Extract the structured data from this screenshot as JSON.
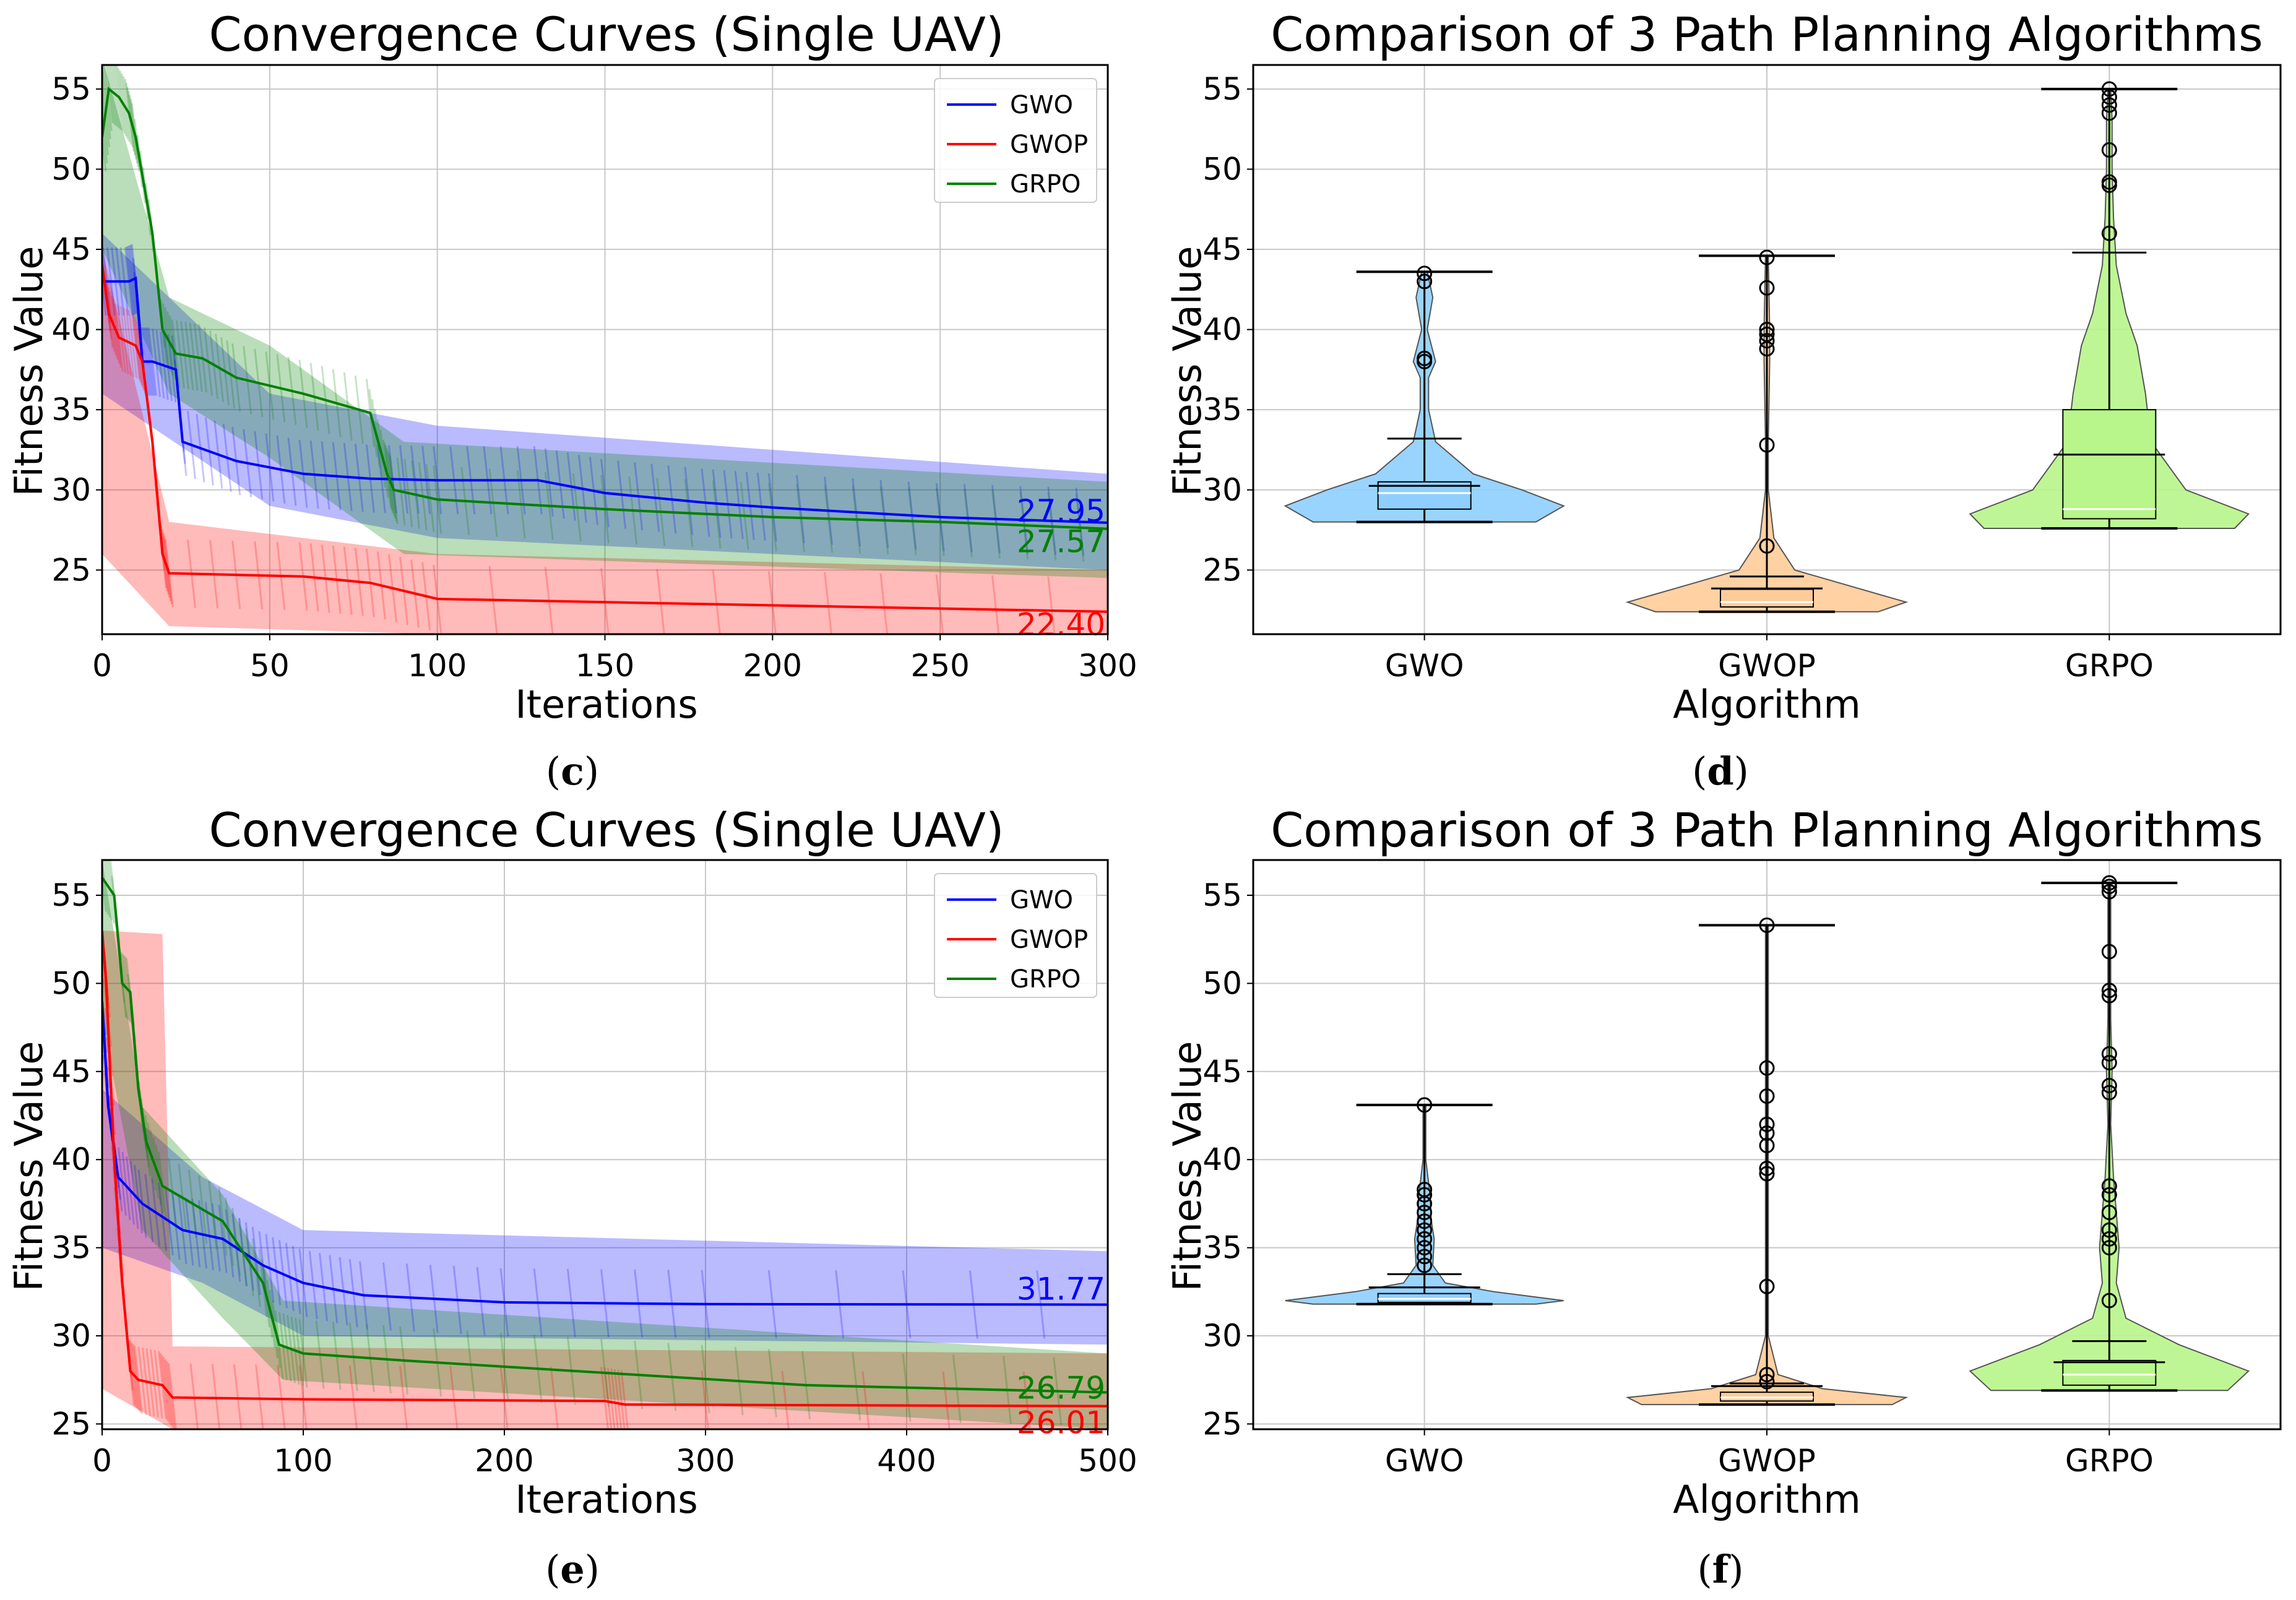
{
  "chart_data": [
    {
      "panel": "c",
      "type": "line",
      "title": "Convergence Curves (Single UAV)",
      "xlabel": "Iterations",
      "ylabel": "Fitness Value",
      "xlim": [
        0,
        300
      ],
      "ylim": [
        21,
        56.5
      ],
      "xticks": [
        0,
        50,
        100,
        150,
        200,
        250,
        300
      ],
      "yticks": [
        25,
        30,
        35,
        40,
        45,
        50,
        55
      ],
      "grid": true,
      "legend": "top-right",
      "series": [
        {
          "name": "GWO",
          "color": "#0000ff",
          "final_label": "27.95",
          "points": [
            [
              0,
              43
            ],
            [
              8,
              43
            ],
            [
              10,
              43.2
            ],
            [
              12,
              38
            ],
            [
              15,
              38
            ],
            [
              22,
              37.5
            ],
            [
              24,
              33
            ],
            [
              40,
              31.8
            ],
            [
              60,
              31
            ],
            [
              80,
              30.7
            ],
            [
              100,
              30.6
            ],
            [
              130,
              30.6
            ],
            [
              150,
              29.8
            ],
            [
              180,
              29.2
            ],
            [
              200,
              28.9
            ],
            [
              250,
              28.3
            ],
            [
              300,
              27.95
            ]
          ],
          "band": [
            [
              0,
              36
            ],
            [
              50,
              29
            ],
            [
              100,
              27
            ],
            [
              300,
              25
            ],
            [
              300,
              31
            ],
            [
              100,
              34
            ],
            [
              50,
              36
            ],
            [
              0,
              46
            ]
          ]
        },
        {
          "name": "GWOP",
          "color": "#ff0000",
          "final_label": "22.40",
          "points": [
            [
              0,
              44
            ],
            [
              2,
              41
            ],
            [
              5,
              39.5
            ],
            [
              10,
              39
            ],
            [
              12,
              38
            ],
            [
              15,
              33
            ],
            [
              18,
              26
            ],
            [
              20,
              24.8
            ],
            [
              60,
              24.6
            ],
            [
              80,
              24.2
            ],
            [
              100,
              23.2
            ],
            [
              200,
              22.8
            ],
            [
              300,
              22.4
            ]
          ],
          "band": [
            [
              0,
              26
            ],
            [
              20,
              21.5
            ],
            [
              100,
              21
            ],
            [
              300,
              21
            ],
            [
              300,
              25
            ],
            [
              100,
              26
            ],
            [
              20,
              28
            ],
            [
              0,
              45
            ]
          ]
        },
        {
          "name": "GRPO",
          "color": "#008000",
          "final_label": "27.57",
          "points": [
            [
              0,
              52
            ],
            [
              2,
              55
            ],
            [
              5,
              54.5
            ],
            [
              8,
              53.5
            ],
            [
              10,
              52
            ],
            [
              15,
              46
            ],
            [
              18,
              40
            ],
            [
              22,
              38.5
            ],
            [
              30,
              38.2
            ],
            [
              40,
              37
            ],
            [
              60,
              36
            ],
            [
              80,
              34.8
            ],
            [
              85,
              31
            ],
            [
              87,
              30
            ],
            [
              100,
              29.4
            ],
            [
              150,
              28.8
            ],
            [
              200,
              28.3
            ],
            [
              250,
              28
            ],
            [
              300,
              27.57
            ]
          ],
          "band": [
            [
              0,
              45
            ],
            [
              20,
              36
            ],
            [
              50,
              32
            ],
            [
              90,
              26
            ],
            [
              300,
              24.5
            ],
            [
              300,
              30.5
            ],
            [
              90,
              33
            ],
            [
              50,
              39
            ],
            [
              20,
              42
            ],
            [
              0,
              57
            ]
          ]
        }
      ]
    },
    {
      "panel": "d",
      "type": "violin",
      "title": "Comparison of 3 Path Planning Algorithms",
      "xlabel": "Algorithm",
      "ylabel": "Fitness Value",
      "categories": [
        "GWO",
        "GWOP",
        "GRPO"
      ],
      "ylim": [
        21,
        56.5
      ],
      "yticks": [
        25,
        30,
        35,
        40,
        45,
        50,
        55
      ],
      "grid": true,
      "groups": [
        {
          "name": "GWO",
          "fill": "#8ecfff",
          "min": 28.0,
          "q1": 28.8,
          "median": 29.8,
          "q3": 30.5,
          "max": 43.6,
          "whisker_low": 28.0,
          "whisker_high": 33.2,
          "outliers": [
            38,
            38.2,
            43,
            43.5
          ],
          "density": [
            [
              28,
              0.8
            ],
            [
              29,
              1.0
            ],
            [
              30,
              0.7
            ],
            [
              31,
              0.35
            ],
            [
              33,
              0.08
            ],
            [
              35,
              0.03
            ],
            [
              37,
              0.03
            ],
            [
              38,
              0.08
            ],
            [
              40,
              0.02
            ],
            [
              42,
              0.06
            ],
            [
              43.6,
              0.02
            ]
          ]
        },
        {
          "name": "GWOP",
          "fill": "#ffcc99",
          "min": 22.4,
          "q1": 22.7,
          "median": 23.0,
          "q3": 23.8,
          "max": 44.6,
          "whisker_low": 22.4,
          "whisker_high": 24.6,
          "outliers": [
            26.5,
            32.8,
            38.8,
            39.3,
            39.7,
            40,
            42.6,
            44.5
          ],
          "density": [
            [
              22.4,
              0.8
            ],
            [
              23,
              1.0
            ],
            [
              24,
              0.6
            ],
            [
              25,
              0.2
            ],
            [
              27,
              0.05
            ],
            [
              30,
              0.01
            ],
            [
              33,
              0.01
            ],
            [
              38,
              0.02
            ],
            [
              40,
              0.02
            ],
            [
              44.6,
              0.01
            ]
          ]
        },
        {
          "name": "GRPO",
          "fill": "#b8f58a",
          "min": 27.6,
          "q1": 28.2,
          "median": 28.8,
          "q3": 35.0,
          "max": 55.0,
          "whisker_low": 27.6,
          "whisker_high": 44.8,
          "outliers": [
            46,
            49,
            49.2,
            51.2,
            53.5,
            54,
            54.5,
            55
          ],
          "density": [
            [
              27.6,
              0.9
            ],
            [
              28.5,
              1.0
            ],
            [
              30,
              0.55
            ],
            [
              33,
              0.3
            ],
            [
              36,
              0.26
            ],
            [
              39,
              0.2
            ],
            [
              41,
              0.12
            ],
            [
              44,
              0.05
            ],
            [
              47,
              0.03
            ],
            [
              50,
              0.02
            ],
            [
              53,
              0.02
            ],
            [
              55,
              0.01
            ]
          ]
        }
      ]
    },
    {
      "panel": "e",
      "type": "line",
      "title": "Convergence Curves (Single UAV)",
      "xlabel": "Iterations",
      "ylabel": "Fitness Value",
      "xlim": [
        0,
        500
      ],
      "ylim": [
        24.7,
        57
      ],
      "xticks": [
        0,
        100,
        200,
        300,
        400,
        500
      ],
      "yticks": [
        25,
        30,
        35,
        40,
        45,
        50,
        55
      ],
      "grid": true,
      "legend": "top-right",
      "series": [
        {
          "name": "GWO",
          "color": "#0000ff",
          "final_label": "31.77",
          "points": [
            [
              0,
              49
            ],
            [
              3,
              43
            ],
            [
              8,
              39
            ],
            [
              20,
              37.5
            ],
            [
              40,
              36
            ],
            [
              60,
              35.5
            ],
            [
              80,
              34
            ],
            [
              100,
              33
            ],
            [
              130,
              32.3
            ],
            [
              200,
              31.9
            ],
            [
              300,
              31.8
            ],
            [
              500,
              31.77
            ]
          ],
          "band": [
            [
              0,
              35
            ],
            [
              50,
              33
            ],
            [
              100,
              30
            ],
            [
              500,
              29.5
            ],
            [
              500,
              34.8
            ],
            [
              100,
              36
            ],
            [
              50,
              39
            ],
            [
              0,
              44
            ]
          ]
        },
        {
          "name": "GWOP",
          "color": "#ff0000",
          "final_label": "26.01",
          "points": [
            [
              0,
              53
            ],
            [
              2,
              50
            ],
            [
              6,
              40
            ],
            [
              10,
              33
            ],
            [
              14,
              28
            ],
            [
              18,
              27.5
            ],
            [
              30,
              27.2
            ],
            [
              35,
              26.5
            ],
            [
              100,
              26.4
            ],
            [
              250,
              26.3
            ],
            [
              260,
              26.1
            ],
            [
              500,
              26.01
            ]
          ],
          "band": [
            [
              0,
              27
            ],
            [
              35,
              24.7
            ],
            [
              500,
              24.7
            ],
            [
              500,
              29
            ],
            [
              35,
              29.4
            ],
            [
              30,
              52.8
            ],
            [
              0,
              53
            ]
          ]
        },
        {
          "name": "GRPO",
          "color": "#008000",
          "final_label": "26.79",
          "points": [
            [
              0,
              56
            ],
            [
              6,
              55
            ],
            [
              10,
              50
            ],
            [
              14,
              49.5
            ],
            [
              18,
              44
            ],
            [
              22,
              41
            ],
            [
              30,
              38.5
            ],
            [
              60,
              36.5
            ],
            [
              80,
              33
            ],
            [
              88,
              29.5
            ],
            [
              100,
              29
            ],
            [
              150,
              28.6
            ],
            [
              250,
              27.9
            ],
            [
              350,
              27.2
            ],
            [
              500,
              26.79
            ]
          ],
          "band": [
            [
              0,
              48
            ],
            [
              20,
              36
            ],
            [
              60,
              31
            ],
            [
              90,
              27.5
            ],
            [
              500,
              24.7
            ],
            [
              500,
              29
            ],
            [
              90,
              32
            ],
            [
              60,
              38
            ],
            [
              20,
              43
            ],
            [
              0,
              57
            ]
          ]
        }
      ]
    },
    {
      "panel": "f",
      "type": "violin",
      "title": "Comparison of 3 Path Planning Algorithms",
      "xlabel": "Algorithm",
      "ylabel": "Fitness Value",
      "categories": [
        "GWO",
        "GWOP",
        "GRPO"
      ],
      "ylim": [
        24.7,
        57
      ],
      "yticks": [
        25,
        30,
        35,
        40,
        45,
        50,
        55
      ],
      "grid": true,
      "groups": [
        {
          "name": "GWO",
          "fill": "#8ecfff",
          "min": 31.8,
          "q1": 31.9,
          "median": 32.1,
          "q3": 32.4,
          "max": 43.1,
          "whisker_low": 31.8,
          "whisker_high": 33.5,
          "outliers": [
            34,
            34.5,
            35,
            35.5,
            36,
            36.5,
            37,
            37.5,
            38,
            38.3,
            43.1
          ],
          "density": [
            [
              31.8,
              0.8
            ],
            [
              32,
              1.0
            ],
            [
              32.5,
              0.5
            ],
            [
              33,
              0.15
            ],
            [
              34,
              0.06
            ],
            [
              35.5,
              0.07
            ],
            [
              36.5,
              0.05
            ],
            [
              38,
              0.04
            ],
            [
              40,
              0.01
            ],
            [
              43.1,
              0.01
            ]
          ]
        },
        {
          "name": "GWOP",
          "fill": "#ffcc99",
          "min": 26.1,
          "q1": 26.3,
          "median": 26.5,
          "q3": 26.8,
          "max": 53.3,
          "whisker_low": 26.1,
          "whisker_high": 27.3,
          "outliers": [
            27.4,
            27.8,
            32.8,
            39.2,
            39.5,
            40.8,
            41.5,
            42,
            43.6,
            45.2,
            53.3
          ],
          "density": [
            [
              26.1,
              0.9
            ],
            [
              26.5,
              1.0
            ],
            [
              27,
              0.4
            ],
            [
              27.8,
              0.08
            ],
            [
              30,
              0.01
            ],
            [
              35,
              0.01
            ],
            [
              40,
              0.01
            ],
            [
              45,
              0.01
            ],
            [
              53.3,
              0.01
            ]
          ]
        },
        {
          "name": "GRPO",
          "fill": "#b8f58a",
          "min": 26.9,
          "q1": 27.2,
          "median": 27.8,
          "q3": 28.6,
          "max": 55.7,
          "whisker_low": 26.9,
          "whisker_high": 29.7,
          "outliers": [
            32,
            35,
            35.5,
            36,
            37,
            38,
            38.5,
            43.8,
            44.2,
            45.5,
            46,
            49.3,
            49.6,
            51.8,
            55.2,
            55.5,
            55.7
          ],
          "density": [
            [
              26.9,
              0.85
            ],
            [
              28,
              1.0
            ],
            [
              29.5,
              0.5
            ],
            [
              31,
              0.12
            ],
            [
              33,
              0.05
            ],
            [
              35,
              0.07
            ],
            [
              37,
              0.05
            ],
            [
              39,
              0.03
            ],
            [
              42,
              0.01
            ],
            [
              45,
              0.02
            ],
            [
              48,
              0.01
            ],
            [
              51,
              0.01
            ],
            [
              55.7,
              0.01
            ]
          ]
        }
      ]
    }
  ],
  "captions": [
    "(c)",
    "(d)",
    "(e)",
    "(f)"
  ]
}
